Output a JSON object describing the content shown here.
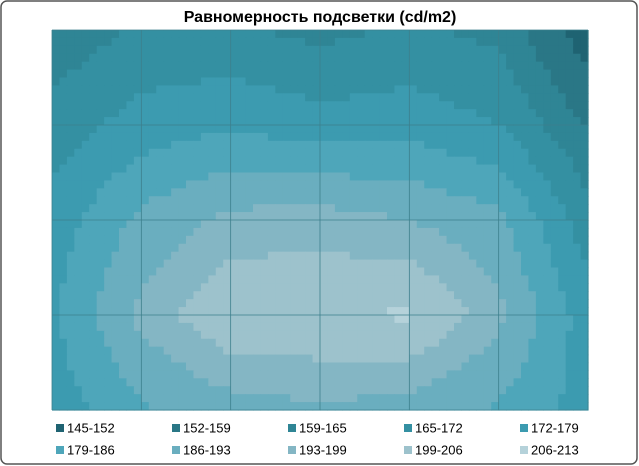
{
  "chart_data": {
    "type": "contour",
    "title": "Равномерность подсветки (cd/m2)",
    "z": [
      [
        160,
        166,
        166,
        163,
        166,
        163,
        148
      ],
      [
        168,
        175,
        178,
        175,
        176,
        172,
        158
      ],
      [
        175,
        188,
        195,
        196,
        193,
        188,
        168
      ],
      [
        178,
        195,
        205,
        205,
        207,
        195,
        175
      ],
      [
        175,
        185,
        190,
        192,
        190,
        185,
        176
      ]
    ],
    "bands": [
      {
        "label": "145-152",
        "min": 145,
        "max": 152,
        "color": "#1f6372"
      },
      {
        "label": "152-159",
        "min": 152,
        "max": 159,
        "color": "#2a7786"
      },
      {
        "label": "159-165",
        "min": 159,
        "max": 165,
        "color": "#2f8595"
      },
      {
        "label": "165-172",
        "min": 165,
        "max": 172,
        "color": "#3490a2"
      },
      {
        "label": "172-179",
        "min": 172,
        "max": 179,
        "color": "#3c9bb0"
      },
      {
        "label": "179-186",
        "min": 179,
        "max": 186,
        "color": "#4ea6ba"
      },
      {
        "label": "186-193",
        "min": 186,
        "max": 193,
        "color": "#6aaebf"
      },
      {
        "label": "193-199",
        "min": 193,
        "max": 199,
        "color": "#84b6c4"
      },
      {
        "label": "199-206",
        "min": 199,
        "max": 206,
        "color": "#9dc2cc"
      },
      {
        "label": "206-213",
        "min": 206,
        "max": 213,
        "color": "#b5d2da"
      }
    ]
  }
}
